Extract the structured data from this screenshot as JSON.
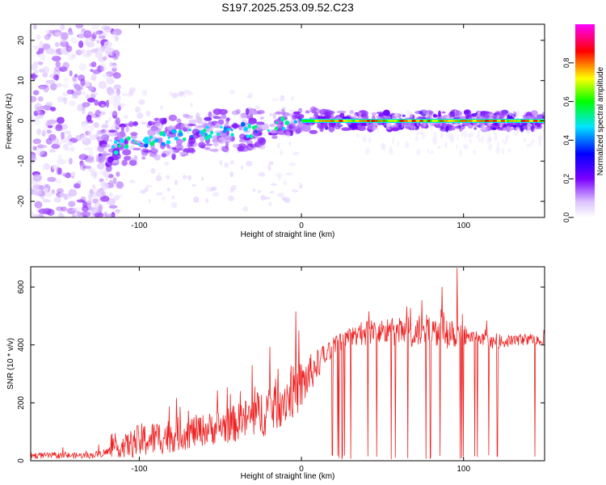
{
  "figure": {
    "title": "S197.2025.253.09.52.C23"
  },
  "colors": {
    "snr_line": "#ee2222",
    "axis": "#000000",
    "background": "#ffffff"
  },
  "chart_data": [
    {
      "type": "heatmap",
      "name": "spectrogram",
      "xlabel": "Height of straight line (km)",
      "ylabel": "Frequency (Hz)",
      "xlim": [
        -167,
        150
      ],
      "ylim": [
        -24,
        24
      ],
      "xticks": [
        -100,
        0,
        100
      ],
      "yticks": [
        -20,
        -10,
        0,
        10,
        20
      ],
      "colorbar": {
        "label": "Normalized spectral amplitude",
        "range": [
          0,
          1
        ],
        "ticks": [
          "0.0",
          "0.2",
          "0.4",
          "0.6",
          "0.8"
        ],
        "colormap": [
          "#ffffff",
          "#dcc4ff",
          "#7a00ff",
          "#0000ff",
          "#00e5ff",
          "#00ff00",
          "#ffff00",
          "#ff0000",
          "#ff00ff"
        ]
      },
      "ridge": {
        "description_units": "frequency (Hz) vs height (km)",
        "x": [
          -120,
          -100,
          -80,
          -60,
          -40,
          -30,
          -20,
          -10,
          0,
          10,
          20,
          50,
          100,
          150
        ],
        "y": [
          -7,
          -5,
          -4,
          -3,
          -2,
          -2.5,
          -1.5,
          -0.5,
          0,
          0,
          0,
          0,
          0,
          0
        ],
        "peak_amplitude": 0.9,
        "peak_start_x": 0
      }
    },
    {
      "type": "line",
      "name": "snr",
      "xlabel": "Height of straight line (km)",
      "ylabel": "SNR (10 * v/v)",
      "xlim": [
        -167,
        150
      ],
      "ylim": [
        0,
        670
      ],
      "xticks": [
        -100,
        0,
        100
      ],
      "yticks": [
        0,
        200,
        400,
        600
      ],
      "envelope": {
        "x": [
          -167,
          -130,
          -120,
          -100,
          -80,
          -60,
          -40,
          -20,
          0,
          10,
          20,
          30,
          40,
          60,
          80,
          90,
          100,
          110,
          120,
          130,
          140,
          150
        ],
        "baseline": [
          15,
          15,
          25,
          50,
          70,
          90,
          110,
          150,
          230,
          320,
          390,
          420,
          430,
          430,
          430,
          435,
          420,
          410,
          400,
          410,
          415,
          410
        ],
        "spike_amplitude": [
          20,
          20,
          30,
          120,
          120,
          110,
          130,
          180,
          180,
          100,
          60,
          60,
          90,
          100,
          120,
          150,
          70,
          50,
          40,
          40,
          40,
          30
        ]
      },
      "peak": {
        "x": 96,
        "y": 665
      },
      "dropouts_to_zero_start_x": 10
    }
  ]
}
